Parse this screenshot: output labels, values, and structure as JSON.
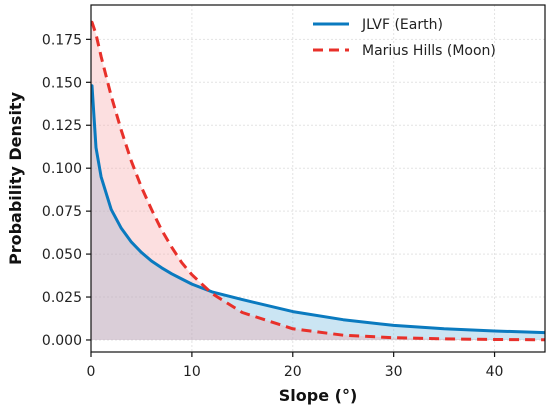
{
  "chart_data": {
    "type": "line",
    "title": "",
    "xlabel": "Slope (°)",
    "ylabel": "Probability Density",
    "xlim": [
      0,
      45
    ],
    "ylim": [
      -0.007,
      0.195
    ],
    "xticks": [
      0,
      10,
      20,
      30,
      40
    ],
    "yticks": [
      0.0,
      0.025,
      0.05,
      0.075,
      0.1,
      0.125,
      0.15,
      0.175
    ],
    "ytick_labels": [
      "0.000",
      "0.025",
      "0.050",
      "0.075",
      "0.100",
      "0.125",
      "0.150",
      "0.175"
    ],
    "grid": true,
    "legend": "top-right",
    "x": [
      0.1,
      0.5,
      1,
      2,
      3,
      4,
      5,
      6,
      7,
      8,
      9,
      10,
      12,
      15,
      20,
      25,
      30,
      35,
      40,
      45
    ],
    "series": [
      {
        "name": "JLVF (Earth)",
        "color": "#0a7abf",
        "fill": "#6ab4dc",
        "style": "solid",
        "values": [
          0.148,
          0.112,
          0.095,
          0.076,
          0.065,
          0.057,
          0.051,
          0.046,
          0.042,
          0.0385,
          0.0355,
          0.0325,
          0.028,
          0.0235,
          0.0165,
          0.0118,
          0.0085,
          0.0065,
          0.0052,
          0.0043
        ]
      },
      {
        "name": "Marius Hills (Moon)",
        "color": "#e8302a",
        "fill": "#f7a4a6",
        "style": "dashed",
        "values": [
          0.185,
          0.178,
          0.165,
          0.142,
          0.122,
          0.104,
          0.089,
          0.076,
          0.064,
          0.054,
          0.045,
          0.038,
          0.027,
          0.016,
          0.0065,
          0.0028,
          0.0013,
          0.0006,
          0.0003,
          0.0001
        ]
      }
    ]
  }
}
